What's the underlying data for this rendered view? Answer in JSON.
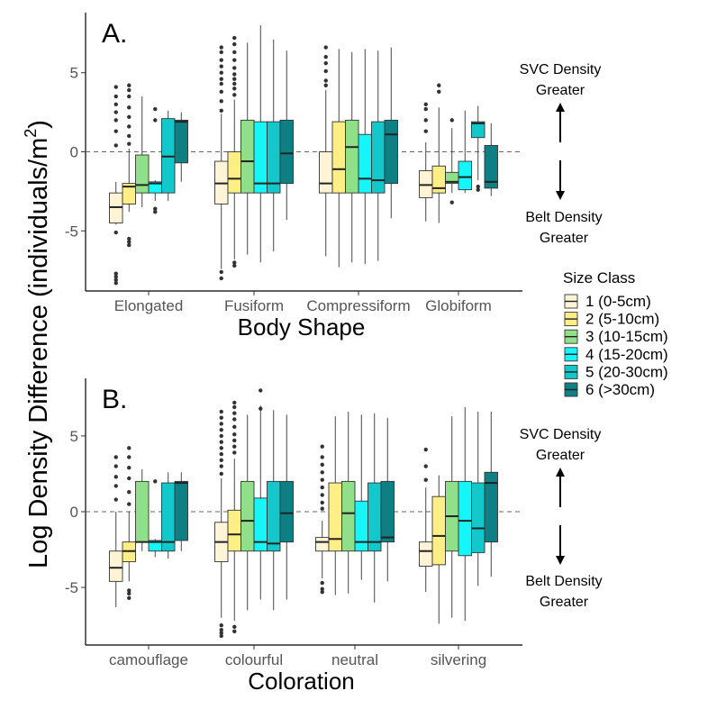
{
  "figure": {
    "y_axis_title_main": "Log Density Difference (individuals/m",
    "y_axis_title_sup": "2",
    "y_axis_title_close": ")"
  },
  "annotations": {
    "svc_line1": "SVC Density",
    "svc_line2": "Greater",
    "belt_line1": "Belt Density",
    "belt_line2": "Greater"
  },
  "legend": {
    "title": "Size Class",
    "entries": [
      {
        "label": "1 (0-5cm)",
        "color": "#FFF5D6"
      },
      {
        "label": "2 (5-10cm)",
        "color": "#FDEE85"
      },
      {
        "label": "3 (10-15cm)",
        "color": "#8FE089"
      },
      {
        "label": "4 (15-20cm)",
        "color": "#16F5F8"
      },
      {
        "label": "5 (20-30cm)",
        "color": "#12C8CB"
      },
      {
        "label": "6 (>30cm)",
        "color": "#0E7F83"
      }
    ]
  },
  "chart_data": [
    {
      "type": "box",
      "panel_label": "A.",
      "xlabel": "Body Shape",
      "ylim": [
        -8.8,
        8.8
      ],
      "yticks": [
        5,
        0,
        -5
      ],
      "reference_line": 0,
      "categories": [
        "Elongated",
        "Fusiform",
        "Compressiform",
        "Globiform"
      ],
      "series": [
        {
          "name": "1 (0-5cm)",
          "boxes": [
            {
              "q1": -4.5,
              "median": -3.5,
              "q3": -2.6,
              "lo": -4.6,
              "hi": -1.9,
              "outliers": [
                -8.3,
                -8.1,
                -7.9,
                -7.7,
                -5.1,
                0.4,
                1.3,
                2.0,
                2.5,
                3.0,
                3.5,
                4.1
              ]
            },
            {
              "q1": -3.3,
              "median": -2.0,
              "q3": -0.6,
              "lo": -7.4,
              "hi": 2.4,
              "outliers": [
                -8.0,
                -7.6,
                2.6,
                3.2,
                3.8,
                4.3,
                4.6,
                5.0,
                5.4,
                5.8,
                6.3,
                6.6
              ]
            },
            {
              "q1": -2.6,
              "median": -2.0,
              "q3": 0.0,
              "lo": -6.6,
              "hi": 3.9,
              "outliers": [
                4.2,
                4.5,
                5.1,
                5.6,
                6.0,
                6.6
              ]
            },
            {
              "q1": -2.9,
              "median": -2.1,
              "q3": -1.2,
              "lo": -4.4,
              "hi": 0.6,
              "outliers": [
                1.3,
                2.0,
                2.7,
                3.0
              ]
            }
          ]
        },
        {
          "name": "2 (5-10cm)",
          "boxes": [
            {
              "q1": -3.3,
              "median": -2.2,
              "q3": -2.0,
              "lo": -3.8,
              "hi": 0.2,
              "outliers": [
                -5.9,
                -5.7,
                -5.5,
                0.5,
                1.0,
                1.6,
                2.2,
                2.8,
                3.5,
                3.9,
                4.2
              ]
            },
            {
              "q1": -2.6,
              "median": -1.7,
              "q3": 0.0,
              "lo": -6.8,
              "hi": 3.3,
              "outliers": [
                -7.2,
                -7.0,
                3.6,
                4.0,
                4.3,
                4.6,
                4.9,
                5.3,
                5.8,
                6.3,
                6.8,
                7.2
              ]
            },
            {
              "q1": -2.6,
              "median": -1.1,
              "q3": 1.9,
              "lo": -7.3,
              "hi": 6.5,
              "outliers": []
            },
            {
              "q1": -2.6,
              "median": -2.3,
              "q3": -0.9,
              "lo": -4.5,
              "hi": 2.8,
              "outliers": [
                3.8,
                4.2
              ]
            }
          ]
        },
        {
          "name": "3 (10-15cm)",
          "boxes": [
            {
              "q1": -2.6,
              "median": -2.1,
              "q3": -0.2,
              "lo": -3.5,
              "hi": 3.5,
              "outliers": []
            },
            {
              "q1": -2.6,
              "median": -0.6,
              "q3": 2.0,
              "lo": -6.5,
              "hi": 6.9,
              "outliers": []
            },
            {
              "q1": -2.6,
              "median": 0.3,
              "q3": 2.0,
              "lo": -7.0,
              "hi": 6.3,
              "outliers": []
            },
            {
              "q1": -2.0,
              "median": -1.9,
              "q3": -1.3,
              "lo": -2.6,
              "hi": 1.5,
              "outliers": [
                -3.2,
                2.0
              ]
            }
          ]
        },
        {
          "name": "4 (15-20cm)",
          "boxes": [
            {
              "q1": -2.6,
              "median": -2.0,
              "q3": -1.9,
              "lo": -3.1,
              "hi": -1.8,
              "outliers": [
                -3.8,
                -3.6,
                2.0,
                2.7
              ]
            },
            {
              "q1": -2.6,
              "median": -2.0,
              "q3": 1.9,
              "lo": -7.0,
              "hi": 8.0,
              "outliers": []
            },
            {
              "q1": -2.6,
              "median": -1.7,
              "q3": 1.1,
              "lo": -7.1,
              "hi": 6.5,
              "outliers": []
            },
            {
              "q1": -2.4,
              "median": -1.6,
              "q3": -0.6,
              "lo": -2.6,
              "hi": 2.6,
              "outliers": []
            }
          ]
        },
        {
          "name": "5 (20-30cm)",
          "boxes": [
            {
              "q1": -2.6,
              "median": -0.3,
              "q3": 2.1,
              "lo": -3.1,
              "hi": 2.6,
              "outliers": []
            },
            {
              "q1": -2.6,
              "median": -2.0,
              "q3": 1.9,
              "lo": -6.3,
              "hi": 7.1,
              "outliers": []
            },
            {
              "q1": -2.6,
              "median": -1.8,
              "q3": 1.9,
              "lo": -6.9,
              "hi": 6.4,
              "outliers": []
            },
            {
              "q1": 0.9,
              "median": 1.8,
              "q3": 1.9,
              "lo": -1.8,
              "hi": 2.9,
              "outliers": [
                -2.2,
                -2.4
              ]
            }
          ]
        },
        {
          "name": "6 (>30cm)",
          "boxes": [
            {
              "q1": -0.7,
              "median": 1.9,
              "q3": 2.0,
              "lo": -1.9,
              "hi": 2.5,
              "outliers": []
            },
            {
              "q1": -2.0,
              "median": -0.1,
              "q3": 2.0,
              "lo": -4.3,
              "hi": 6.4,
              "outliers": []
            },
            {
              "q1": -2.0,
              "median": 1.1,
              "q3": 2.0,
              "lo": -4.2,
              "hi": 6.6,
              "outliers": []
            },
            {
              "q1": -2.3,
              "median": -1.9,
              "q3": 0.4,
              "lo": -2.8,
              "hi": 1.8,
              "outliers": []
            }
          ]
        }
      ]
    },
    {
      "type": "box",
      "panel_label": "B.",
      "xlabel": "Coloration",
      "ylim": [
        -8.8,
        8.8
      ],
      "yticks": [
        5,
        0,
        -5
      ],
      "reference_line": 0,
      "categories": [
        "camouflage",
        "colourful",
        "neutral",
        "silvering"
      ],
      "series": [
        {
          "name": "1 (0-5cm)",
          "boxes": [
            {
              "q1": -4.6,
              "median": -3.7,
              "q3": -2.6,
              "lo": -6.3,
              "hi": 0.0,
              "outliers": [
                0.8,
                1.7,
                2.3,
                3.0,
                3.6
              ]
            },
            {
              "q1": -3.3,
              "median": -2.0,
              "q3": -0.7,
              "lo": -7.0,
              "hi": 2.2,
              "outliers": [
                -8.2,
                -8.0,
                -7.8,
                -7.5,
                2.5,
                3.0,
                3.4,
                3.8,
                4.2,
                4.6,
                5.0,
                5.4,
                5.8,
                6.2,
                6.6
              ]
            },
            {
              "q1": -2.6,
              "median": -2.0,
              "q3": -1.7,
              "lo": -4.4,
              "hi": -0.6,
              "outliers": [
                -5.3,
                -5.1,
                -4.7,
                0.2,
                0.6,
                1.1,
                1.6,
                2.1,
                2.6,
                3.1,
                3.6,
                4.3
              ]
            },
            {
              "q1": -3.6,
              "median": -2.6,
              "q3": -2.0,
              "lo": -5.3,
              "hi": 1.6,
              "outliers": [
                2.1,
                3.0,
                4.1
              ]
            }
          ]
        },
        {
          "name": "2 (5-10cm)",
          "boxes": [
            {
              "q1": -3.3,
              "median": -2.6,
              "q3": -2.0,
              "lo": -4.6,
              "hi": 0.0,
              "outliers": [
                -5.7,
                -5.4,
                -5.2,
                0.5,
                1.3,
                2.2,
                2.9,
                3.6,
                4.2
              ]
            },
            {
              "q1": -2.6,
              "median": -1.5,
              "q3": 0.1,
              "lo": -7.2,
              "hi": 3.5,
              "outliers": [
                -7.9,
                -7.6,
                3.9,
                4.3,
                4.7,
                5.1,
                5.6,
                6.1,
                6.5,
                6.9,
                7.2
              ]
            },
            {
              "q1": -2.6,
              "median": -1.8,
              "q3": 1.9,
              "lo": -5.5,
              "hi": 6.3,
              "outliers": []
            },
            {
              "q1": -3.5,
              "median": -1.6,
              "q3": 1.0,
              "lo": -7.4,
              "hi": 2.4,
              "outliers": []
            }
          ]
        },
        {
          "name": "3 (10-15cm)",
          "boxes": [
            {
              "q1": -2.0,
              "median": -2.0,
              "q3": 2.0,
              "lo": -2.6,
              "hi": 2.8,
              "outliers": []
            },
            {
              "q1": -2.6,
              "median": -0.6,
              "q3": 2.0,
              "lo": -6.5,
              "hi": 6.4,
              "outliers": []
            },
            {
              "q1": -2.6,
              "median": -0.1,
              "q3": 2.0,
              "lo": -5.4,
              "hi": 6.6,
              "outliers": []
            },
            {
              "q1": -2.6,
              "median": -0.3,
              "q3": 2.0,
              "lo": -7.0,
              "hi": 6.3,
              "outliers": []
            }
          ]
        },
        {
          "name": "4 (15-20cm)",
          "boxes": [
            {
              "q1": -2.6,
              "median": -2.0,
              "q3": -1.9,
              "lo": -3.0,
              "hi": -1.8,
              "outliers": [
                2.0
              ]
            },
            {
              "q1": -2.6,
              "median": -2.0,
              "q3": 0.9,
              "lo": -5.8,
              "hi": 7.0,
              "outliers": [
                6.8,
                8.0
              ]
            },
            {
              "q1": -2.6,
              "median": -2.0,
              "q3": 0.7,
              "lo": -4.5,
              "hi": 6.4,
              "outliers": []
            },
            {
              "q1": -2.9,
              "median": -0.6,
              "q3": 2.0,
              "lo": -7.2,
              "hi": 6.9,
              "outliers": []
            }
          ]
        },
        {
          "name": "5 (20-30cm)",
          "boxes": [
            {
              "q1": -2.6,
              "median": -2.0,
              "q3": 1.9,
              "lo": -3.1,
              "hi": 2.6,
              "outliers": []
            },
            {
              "q1": -2.6,
              "median": -2.1,
              "q3": 2.0,
              "lo": -6.5,
              "hi": 6.7,
              "outliers": []
            },
            {
              "q1": -2.6,
              "median": -2.0,
              "q3": 1.9,
              "lo": -6.0,
              "hi": 6.5,
              "outliers": []
            },
            {
              "q1": -2.7,
              "median": -1.1,
              "q3": 1.9,
              "lo": -4.9,
              "hi": 6.6,
              "outliers": []
            }
          ]
        },
        {
          "name": "6 (>30cm)",
          "boxes": [
            {
              "q1": -1.9,
              "median": 1.9,
              "q3": 2.0,
              "lo": -2.6,
              "hi": 2.6,
              "outliers": []
            },
            {
              "q1": -2.0,
              "median": -0.1,
              "q3": 2.0,
              "lo": -5.8,
              "hi": 6.4,
              "outliers": []
            },
            {
              "q1": -2.0,
              "median": -1.7,
              "q3": 2.0,
              "lo": -4.6,
              "hi": 6.2,
              "outliers": []
            },
            {
              "q1": -2.0,
              "median": 1.9,
              "q3": 2.6,
              "lo": -4.3,
              "hi": 6.6,
              "outliers": []
            }
          ]
        }
      ]
    }
  ]
}
